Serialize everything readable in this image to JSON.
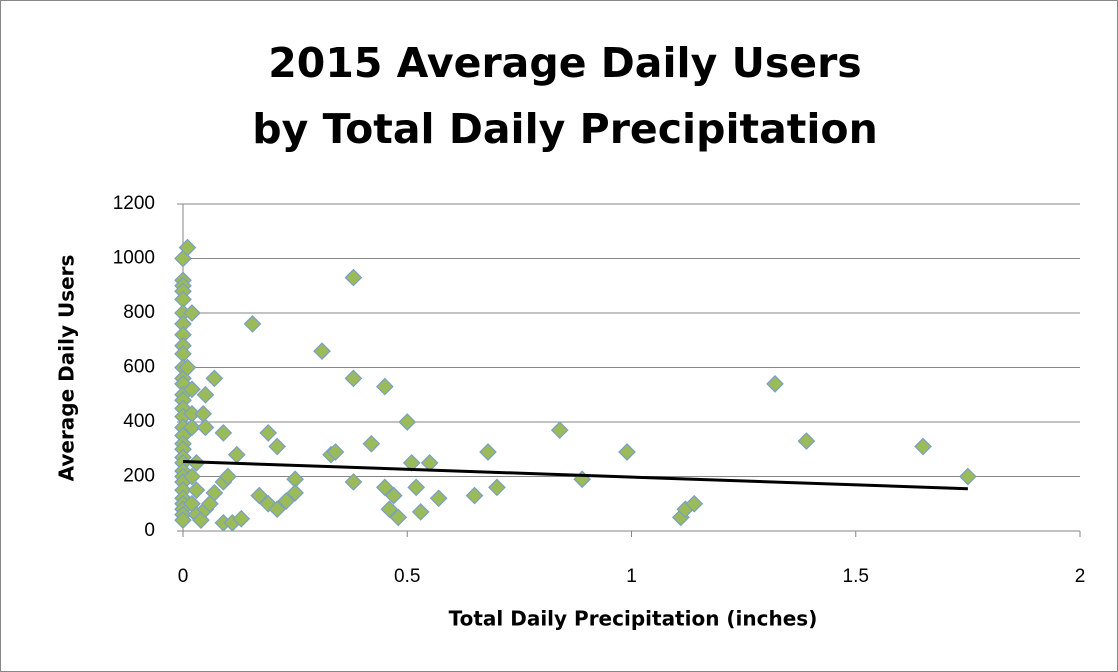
{
  "chart_data": {
    "type": "scatter",
    "title": [
      "2015 Average Daily Users",
      "by Total Daily Precipitation"
    ],
    "x_label": "Total Daily Precipitation (inches)",
    "y_label": "Average Daily Users",
    "x": [
      0,
      0,
      0,
      0,
      0,
      0,
      0,
      0,
      0,
      0,
      0,
      0,
      0,
      0,
      0,
      0,
      0,
      0,
      0,
      0,
      0,
      0,
      0,
      0,
      0,
      0,
      0,
      0,
      0,
      0,
      0,
      0,
      0.01,
      0.02,
      0.01,
      0.02,
      0.02,
      0.02,
      0.03,
      0.03,
      0.02,
      0.03,
      0.04,
      0.05,
      0.02,
      0.05,
      0.07,
      0.045,
      0.05,
      0.09,
      0.155,
      0.12,
      0.09,
      0.1,
      0.07,
      0.06,
      0.09,
      0.11,
      0.13,
      0.19,
      0.21,
      0.17,
      0.19,
      0.21,
      0.23,
      0.25,
      0.25,
      0.31,
      0.33,
      0.34,
      0.38,
      0.38,
      0.38,
      0.42,
      0.45,
      0.45,
      0.46,
      0.47,
      0.48,
      0.5,
      0.51,
      0.52,
      0.53,
      0.55,
      0.57,
      0.65,
      0.68,
      0.7,
      0.84,
      0.89,
      0.99,
      1.11,
      1.12,
      1.14,
      1.32,
      1.39,
      1.65,
      1.75
    ],
    "values": [
      1000,
      920,
      900,
      880,
      850,
      800,
      760,
      720,
      680,
      650,
      600,
      560,
      540,
      500,
      480,
      450,
      420,
      380,
      350,
      320,
      300,
      270,
      250,
      220,
      200,
      180,
      150,
      120,
      100,
      80,
      60,
      40,
      1040,
      800,
      600,
      520,
      430,
      380,
      250,
      150,
      100,
      60,
      40,
      80,
      200,
      500,
      560,
      430,
      380,
      360,
      760,
      280,
      180,
      200,
      140,
      100,
      30,
      30,
      45,
      360,
      310,
      130,
      100,
      80,
      110,
      190,
      140,
      660,
      280,
      290,
      930,
      560,
      180,
      320,
      530,
      160,
      80,
      130,
      50,
      400,
      250,
      160,
      70,
      250,
      120,
      130,
      290,
      160,
      370,
      190,
      290,
      50,
      80,
      100,
      540,
      330,
      310,
      200
    ],
    "color": "#9bbb59",
    "edge_color": "#7a9fc6",
    "trendline": {
      "x": [
        0,
        1.75
      ],
      "values": [
        255,
        155
      ],
      "color": "#000000"
    },
    "xlim": [
      0,
      2
    ],
    "xticks": [
      0,
      0.5,
      1,
      1.5,
      2
    ],
    "ylim": [
      0,
      1200
    ],
    "yticks": [
      0,
      200,
      400,
      600,
      800,
      1000,
      1200
    ],
    "grid": true
  }
}
